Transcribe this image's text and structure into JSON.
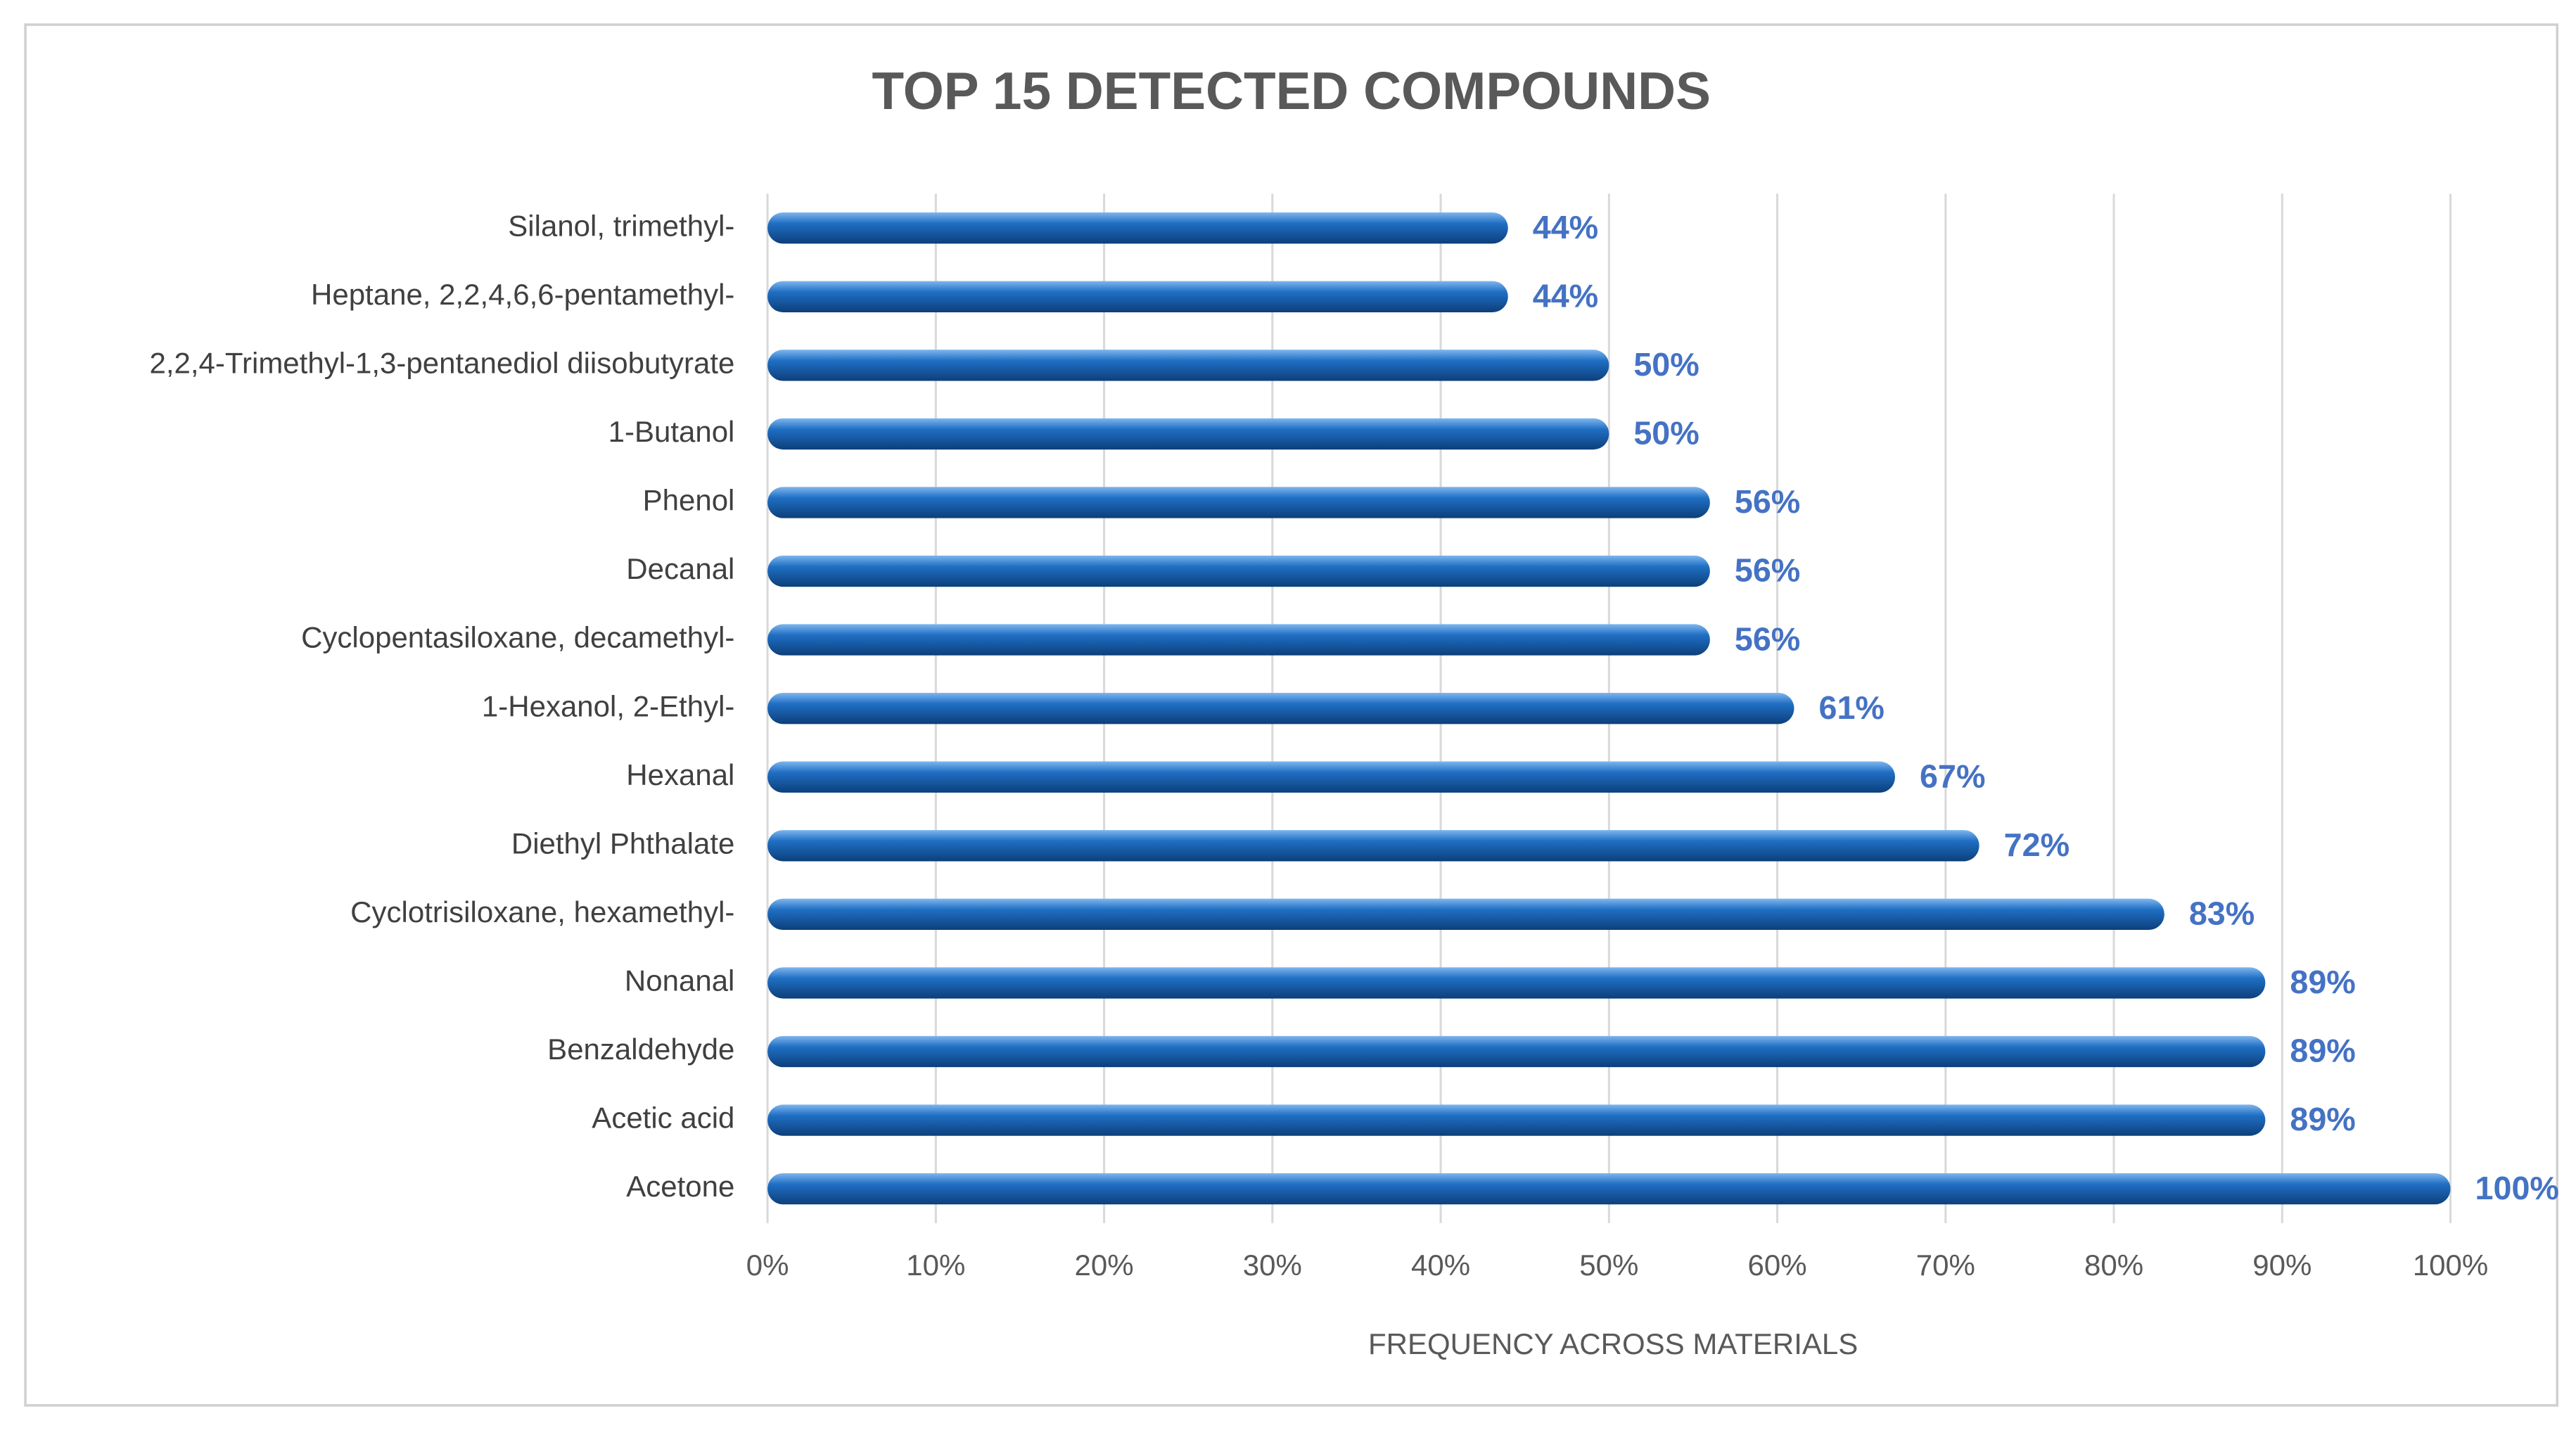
{
  "chart_data": {
    "type": "bar",
    "orientation": "horizontal",
    "title": "TOP 15 DETECTED COMPOUNDS",
    "x_label": "FREQUENCY ACROSS MATERIALS",
    "categories": [
      "Silanol, trimethyl-",
      "Heptane, 2,2,4,6,6-pentamethyl-",
      "2,2,4-Trimethyl-1,3-pentanediol diisobutyrate",
      "1-Butanol",
      "Phenol",
      "Decanal",
      "Cyclopentasiloxane, decamethyl-",
      "1-Hexanol, 2-Ethyl-",
      "Hexanal",
      "Diethyl Phthalate",
      "Cyclotrisiloxane, hexamethyl-",
      "Nonanal",
      "Benzaldehyde",
      "Acetic acid",
      "Acetone"
    ],
    "values": [
      44,
      44,
      50,
      50,
      56,
      56,
      56,
      61,
      67,
      72,
      83,
      89,
      89,
      89,
      100
    ],
    "value_labels": [
      "44%",
      "44%",
      "50%",
      "50%",
      "56%",
      "56%",
      "56%",
      "61%",
      "67%",
      "72%",
      "83%",
      "89%",
      "89%",
      "89%",
      "100%"
    ],
    "color": "#1f6fc4",
    "label_color": "#4472c4",
    "xlim": [
      0,
      100
    ],
    "xticks": [
      {
        "value": 0,
        "label": "0%"
      },
      {
        "value": 10,
        "label": "10%"
      },
      {
        "value": 20,
        "label": "20%"
      },
      {
        "value": 30,
        "label": "30%"
      },
      {
        "value": 40,
        "label": "40%"
      },
      {
        "value": 50,
        "label": "50%"
      },
      {
        "value": 60,
        "label": "60%"
      },
      {
        "value": 70,
        "label": "70%"
      },
      {
        "value": 80,
        "label": "80%"
      },
      {
        "value": 90,
        "label": "90%"
      },
      {
        "value": 100,
        "label": "100%"
      }
    ],
    "grid": true
  }
}
